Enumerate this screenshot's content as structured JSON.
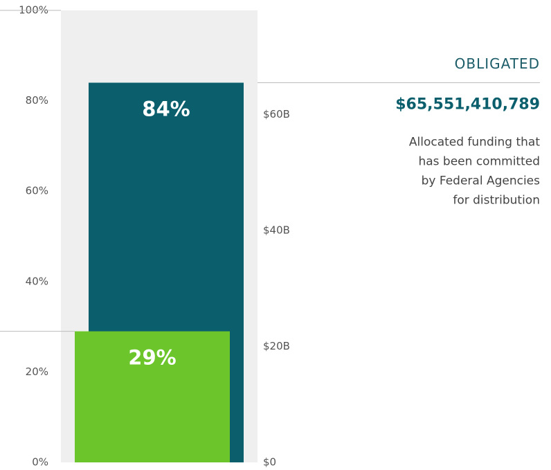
{
  "chart_data": {
    "type": "bar",
    "ylim": [
      0,
      100
    ],
    "yticks": [
      {
        "value": 0,
        "label": "0%"
      },
      {
        "value": 20,
        "label": "20%"
      },
      {
        "value": 40,
        "label": "40%"
      },
      {
        "value": 60,
        "label": "60%"
      },
      {
        "value": 80,
        "label": "80%"
      },
      {
        "value": 100,
        "label": "100%"
      }
    ],
    "y2lim": [
      0,
      78
    ],
    "y2ticks": [
      {
        "value": 0,
        "label": "$0"
      },
      {
        "value": 20,
        "label": "$20B"
      },
      {
        "value": 40,
        "label": "$40B"
      },
      {
        "value": 60,
        "label": "$60B"
      }
    ],
    "series": [
      {
        "name": "OBLIGATED",
        "color": "#0b5f6d",
        "values": [
          84
        ],
        "value_labels": [
          "84%"
        ]
      },
      {
        "color": "#6cc62b",
        "values": [
          29
        ],
        "value_labels": [
          "29%"
        ]
      }
    ],
    "annotation": {
      "amount": "$65,551,410,789",
      "description": [
        "Allocated funding that",
        "has been committed",
        "by Federal Agencies",
        "for distribution"
      ]
    }
  }
}
